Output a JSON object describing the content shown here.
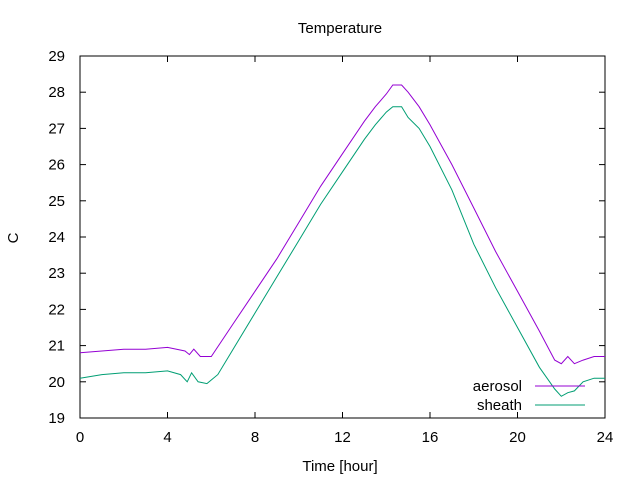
{
  "chart_data": {
    "type": "line",
    "title": "Temperature",
    "xlabel": "Time [hour]",
    "ylabel": "C",
    "xlim": [
      0,
      24
    ],
    "ylim": [
      19,
      29
    ],
    "xticks": [
      "0",
      "4",
      "8",
      "12",
      "16",
      "20",
      "24"
    ],
    "yticks": [
      "19",
      "20",
      "21",
      "22",
      "23",
      "24",
      "25",
      "26",
      "27",
      "28",
      "29"
    ],
    "grid": false,
    "legend_position": "bottom-right",
    "series": [
      {
        "name": "aerosol",
        "color": "#9400d3",
        "x": [
          0,
          1,
          2,
          3,
          4,
          4.8,
          5.0,
          5.2,
          5.5,
          6.0,
          7,
          8,
          9,
          10,
          11,
          12,
          13,
          13.5,
          14,
          14.3,
          14.7,
          15,
          15.5,
          16,
          17,
          18,
          19,
          20,
          21,
          21.7,
          22.0,
          22.3,
          22.6,
          23,
          23.5,
          24
        ],
        "y": [
          20.8,
          20.85,
          20.9,
          20.9,
          20.95,
          20.85,
          20.75,
          20.9,
          20.7,
          20.7,
          21.6,
          22.5,
          23.4,
          24.4,
          25.4,
          26.3,
          27.2,
          27.6,
          27.95,
          28.2,
          28.2,
          28.0,
          27.6,
          27.1,
          26.0,
          24.8,
          23.6,
          22.5,
          21.4,
          20.6,
          20.5,
          20.7,
          20.5,
          20.6,
          20.7,
          20.7
        ]
      },
      {
        "name": "sheath",
        "color": "#009e73",
        "x": [
          0,
          1,
          2,
          3,
          4,
          4.6,
          4.9,
          5.1,
          5.4,
          5.8,
          6.3,
          7,
          8,
          9,
          10,
          11,
          12,
          13,
          13.5,
          14,
          14.3,
          14.7,
          15,
          15.5,
          16,
          17,
          18,
          19,
          20,
          21,
          21.7,
          22.0,
          22.3,
          22.6,
          23,
          23.5,
          24
        ],
        "y": [
          20.1,
          20.2,
          20.25,
          20.25,
          20.3,
          20.2,
          20.0,
          20.25,
          20.0,
          19.95,
          20.2,
          20.9,
          21.9,
          22.9,
          23.9,
          24.9,
          25.8,
          26.7,
          27.1,
          27.45,
          27.6,
          27.6,
          27.3,
          27.0,
          26.5,
          25.3,
          23.8,
          22.6,
          21.5,
          20.4,
          19.8,
          19.6,
          19.7,
          19.75,
          20.0,
          20.1,
          20.1
        ]
      }
    ]
  }
}
